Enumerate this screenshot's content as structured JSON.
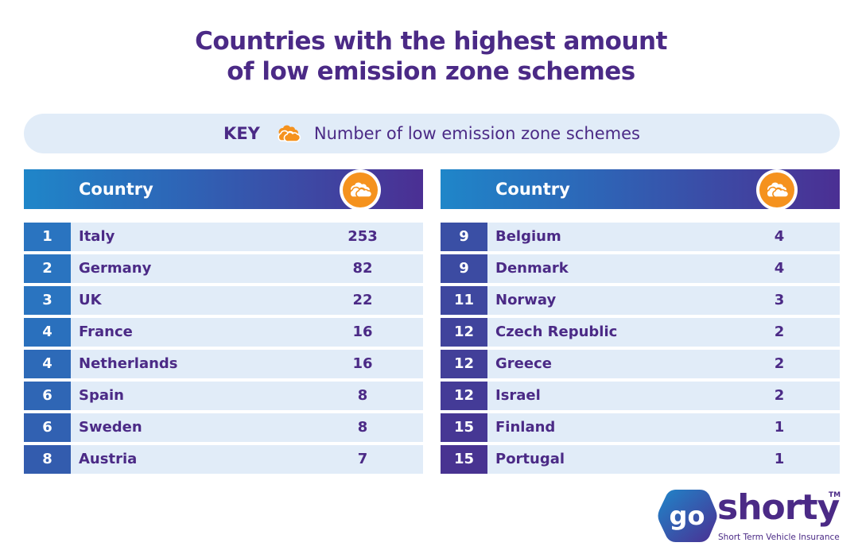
{
  "title": {
    "line1": "Countries with the highest amount",
    "line2": "of low emission zone schemes"
  },
  "key": {
    "label": "KEY",
    "icon": "cloud-icon",
    "text": "Number of low emission zone schemes"
  },
  "colors": {
    "title": "#4b2a86",
    "accent_orange": "#f5921e",
    "row_bg": "#e1ecf8",
    "header_gradient_start": "#1f86c9",
    "header_gradient_end": "#4b2f93"
  },
  "left_table": {
    "header": "Country",
    "rows": [
      {
        "rank": "1",
        "country": "Italy",
        "value": "253"
      },
      {
        "rank": "2",
        "country": "Germany",
        "value": "82"
      },
      {
        "rank": "3",
        "country": "UK",
        "value": "22"
      },
      {
        "rank": "4",
        "country": "France",
        "value": "16"
      },
      {
        "rank": "4",
        "country": "Netherlands",
        "value": "16"
      },
      {
        "rank": "6",
        "country": "Spain",
        "value": "8"
      },
      {
        "rank": "6",
        "country": "Sweden",
        "value": "8"
      },
      {
        "rank": "8",
        "country": "Austria",
        "value": "7"
      }
    ]
  },
  "right_table": {
    "header": "Country",
    "rows": [
      {
        "rank": "9",
        "country": "Belgium",
        "value": "4"
      },
      {
        "rank": "9",
        "country": "Denmark",
        "value": "4"
      },
      {
        "rank": "11",
        "country": "Norway",
        "value": "3"
      },
      {
        "rank": "12",
        "country": "Czech Republic",
        "value": "2"
      },
      {
        "rank": "12",
        "country": "Greece",
        "value": "2"
      },
      {
        "rank": "12",
        "country": "Israel",
        "value": "2"
      },
      {
        "rank": "15",
        "country": "Finland",
        "value": "1"
      },
      {
        "rank": "15",
        "country": "Portugal",
        "value": "1"
      }
    ]
  },
  "logo": {
    "badge_text": "go",
    "brand": "shorty",
    "trademark": "TM",
    "tagline": "Short Term Vehicle Insurance"
  }
}
